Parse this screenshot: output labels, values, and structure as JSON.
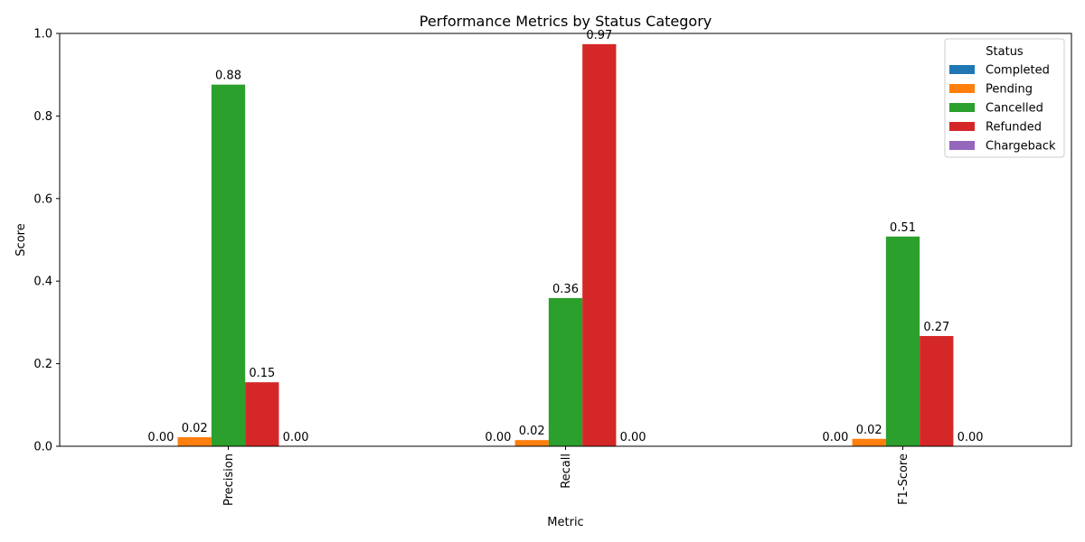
{
  "chart_data": {
    "type": "bar",
    "title": "Performance Metrics by Status Category",
    "xlabel": "Metric",
    "ylabel": "Score",
    "ylim": [
      0,
      1.0
    ],
    "yticks": [
      "0.0",
      "0.2",
      "0.4",
      "0.6",
      "0.8",
      "1.0"
    ],
    "categories": [
      "Precision",
      "Recall",
      "F1-Score"
    ],
    "legend_title": "Status",
    "legend_position": "top-right",
    "grid": false,
    "series": [
      {
        "name": "Completed",
        "color": "#1f77b4",
        "values": [
          0.0,
          0.0,
          0.0
        ],
        "labels": [
          "0.00",
          "0.00",
          "0.00"
        ]
      },
      {
        "name": "Pending",
        "color": "#ff7f0e",
        "values": [
          0.022,
          0.015,
          0.018
        ],
        "labels": [
          "0.02",
          "0.02",
          "0.02"
        ]
      },
      {
        "name": "Cancelled",
        "color": "#2ca02c",
        "values": [
          0.876,
          0.359,
          0.508
        ],
        "labels": [
          "0.88",
          "0.36",
          "0.51"
        ]
      },
      {
        "name": "Refunded",
        "color": "#d62728",
        "values": [
          0.155,
          0.974,
          0.267
        ],
        "labels": [
          "0.15",
          "0.97",
          "0.27"
        ]
      },
      {
        "name": "Chargeback",
        "color": "#9467bd",
        "values": [
          0.0,
          0.0,
          0.0
        ],
        "labels": [
          "0.00",
          "0.00",
          "0.00"
        ]
      }
    ]
  }
}
